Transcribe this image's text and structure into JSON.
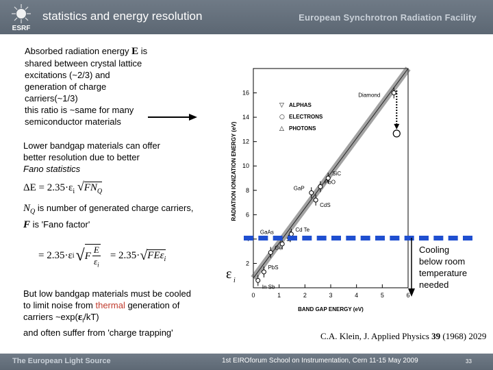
{
  "header": {
    "logo_text": "ESRF",
    "title": "statistics and energy resolution",
    "org": "European Synchrotron Radiation Facility"
  },
  "intro": {
    "line1": "Absorbed radiation energy ",
    "E": "E",
    "line1b": " is",
    "line2": "shared between crystal lattice",
    "line3": "excitations (~2/3) and",
    "line4": "generation of charge",
    "line5": "carriers(~1/3)",
    "line6": "this ratio is ~same for many",
    "line7": "semiconductor materials"
  },
  "lower": {
    "line1": "Lower bandgap materials can offer",
    "line2": "better resolution due to better",
    "line3": "Fano statistics"
  },
  "formula1": {
    "lhs": "ΔE = 2.35·ε",
    "sub_i": "i",
    "radicand": "FN",
    "sub_q": "Q"
  },
  "nq_text": {
    "symbol": "N",
    "sub": "Q",
    "rest": " is number of generated charge carriers,"
  },
  "f_text": {
    "symbol": "F",
    "rest": " is 'Fano factor'"
  },
  "formula2": {
    "eq1": "= 2.35·ε",
    "sub_i": "i",
    "F": "F",
    "frac_num": "E",
    "frac_den": "ε",
    "frac_den_sub": "i",
    "eq2": "= 2.35·",
    "radicand2": "FEε",
    "radicand2_sub": "i"
  },
  "bottom": {
    "line1": "But low bandgap materials must be cooled",
    "line2": "to limit noise from ",
    "thermal": "thermal",
    "line2b": " generation of",
    "line3a": "carriers ~exp(",
    "eps": "ε",
    "eps_sub": "i",
    "line3b": "/kT)",
    "line4": "and often suffer from 'charge trapping'"
  },
  "cooling": {
    "line1": "Cooling",
    "line2": "below room",
    "line3": "temperature",
    "line4": "needed"
  },
  "citation": {
    "author": "C.A. Klein, J. Applied Physics ",
    "vol": "39",
    "rest": " (1968) 2029"
  },
  "chart_data": {
    "type": "scatter",
    "xlabel": "BAND GAP ENERGY (eV)",
    "ylabel": "RADIATION IONIZATION ENERGY (eV)",
    "y_symbol": "ε",
    "y_symbol_sub": "i",
    "xlim": [
      0,
      6
    ],
    "ylim": [
      0,
      18
    ],
    "x_ticks": [
      0,
      1,
      2,
      3,
      4,
      5,
      6
    ],
    "y_ticks": [
      2,
      4,
      6,
      8,
      10,
      12,
      14,
      16
    ],
    "legend": [
      "ALPHAS",
      "ELECTRONS",
      "PHOTONS"
    ],
    "materials": [
      {
        "name": "In Sb",
        "x": 0.18,
        "y": 0.6
      },
      {
        "name": "PbS",
        "x": 0.41,
        "y": 1.3
      },
      {
        "name": "Ge",
        "x": 0.67,
        "y": 2.9
      },
      {
        "name": "Si",
        "x": 1.12,
        "y": 3.6
      },
      {
        "name": "GaAs",
        "x": 1.43,
        "y": 4.2
      },
      {
        "name": "Cd Te",
        "x": 1.47,
        "y": 4.4
      },
      {
        "name": "GaP",
        "x": 2.25,
        "y": 7.8
      },
      {
        "name": "CdS",
        "x": 2.42,
        "y": 7.2
      },
      {
        "name": "PbO",
        "x": 2.6,
        "y": 8.3
      },
      {
        "name": "SiC",
        "x": 2.9,
        "y": 9.0
      },
      {
        "name": "Diamond",
        "x": 5.45,
        "y": 16.0
      }
    ],
    "fit_line": [
      [
        0,
        0.8
      ],
      [
        6,
        18.2
      ]
    ],
    "arrow_from_y": 16.2,
    "arrow_to_y": 13.0
  },
  "footer": {
    "left": "The European Light Source",
    "center": "1st EIROforum School on Instrumentation, Cern 11-15 May 2009",
    "page": "33"
  }
}
